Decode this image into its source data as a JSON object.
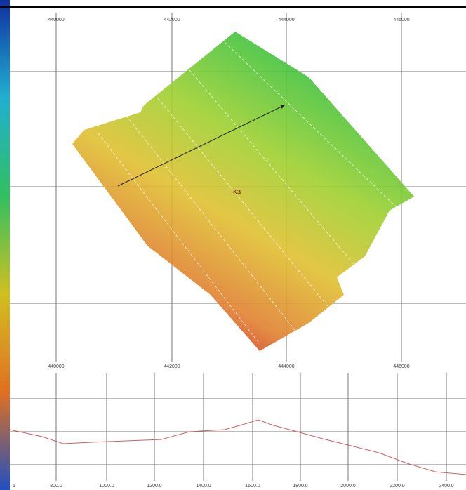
{
  "map": {
    "top_labels": [
      "440000",
      "442000",
      "444000",
      "446000"
    ],
    "bottom_labels": [
      "440000",
      "442000",
      "444000",
      "446000"
    ],
    "marker_label": "K3"
  },
  "profile": {
    "x_labels": [
      "1",
      "800.0",
      "1000.0",
      "1200.0",
      "1400.0",
      "1600.0",
      "1800.0",
      "2000.0",
      "2200.0",
      "2400.0"
    ]
  }
}
